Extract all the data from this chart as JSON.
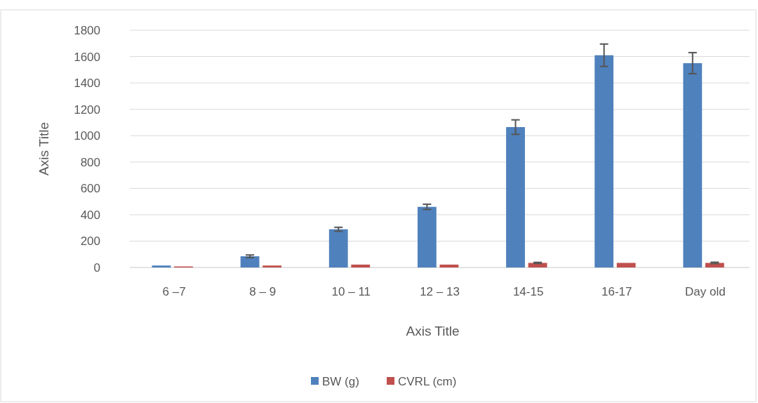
{
  "chart_data": {
    "type": "bar",
    "xlabel": "Axis Title",
    "ylabel": "Axis Title",
    "categories": [
      "6 –7",
      "8 – 9",
      "10 – 11",
      "12 – 13",
      "14-15",
      "16-17",
      "Day old"
    ],
    "series": [
      {
        "name": "BW (g)",
        "color": "#4f81bd",
        "values": [
          15,
          85,
          290,
          460,
          1065,
          1610,
          1550
        ],
        "errors": [
          null,
          10,
          15,
          20,
          55,
          85,
          80
        ]
      },
      {
        "name": "CVRL (cm)",
        "color": "#c0504d",
        "values": [
          8,
          15,
          22,
          22,
          35,
          35,
          35
        ],
        "errors": [
          null,
          null,
          null,
          null,
          4,
          null,
          5
        ]
      }
    ],
    "ylim": [
      0,
      1800
    ],
    "yticks": [
      0,
      200,
      400,
      600,
      800,
      1000,
      1200,
      1400,
      1600,
      1800
    ],
    "grid": "y",
    "legend": "bottom"
  }
}
